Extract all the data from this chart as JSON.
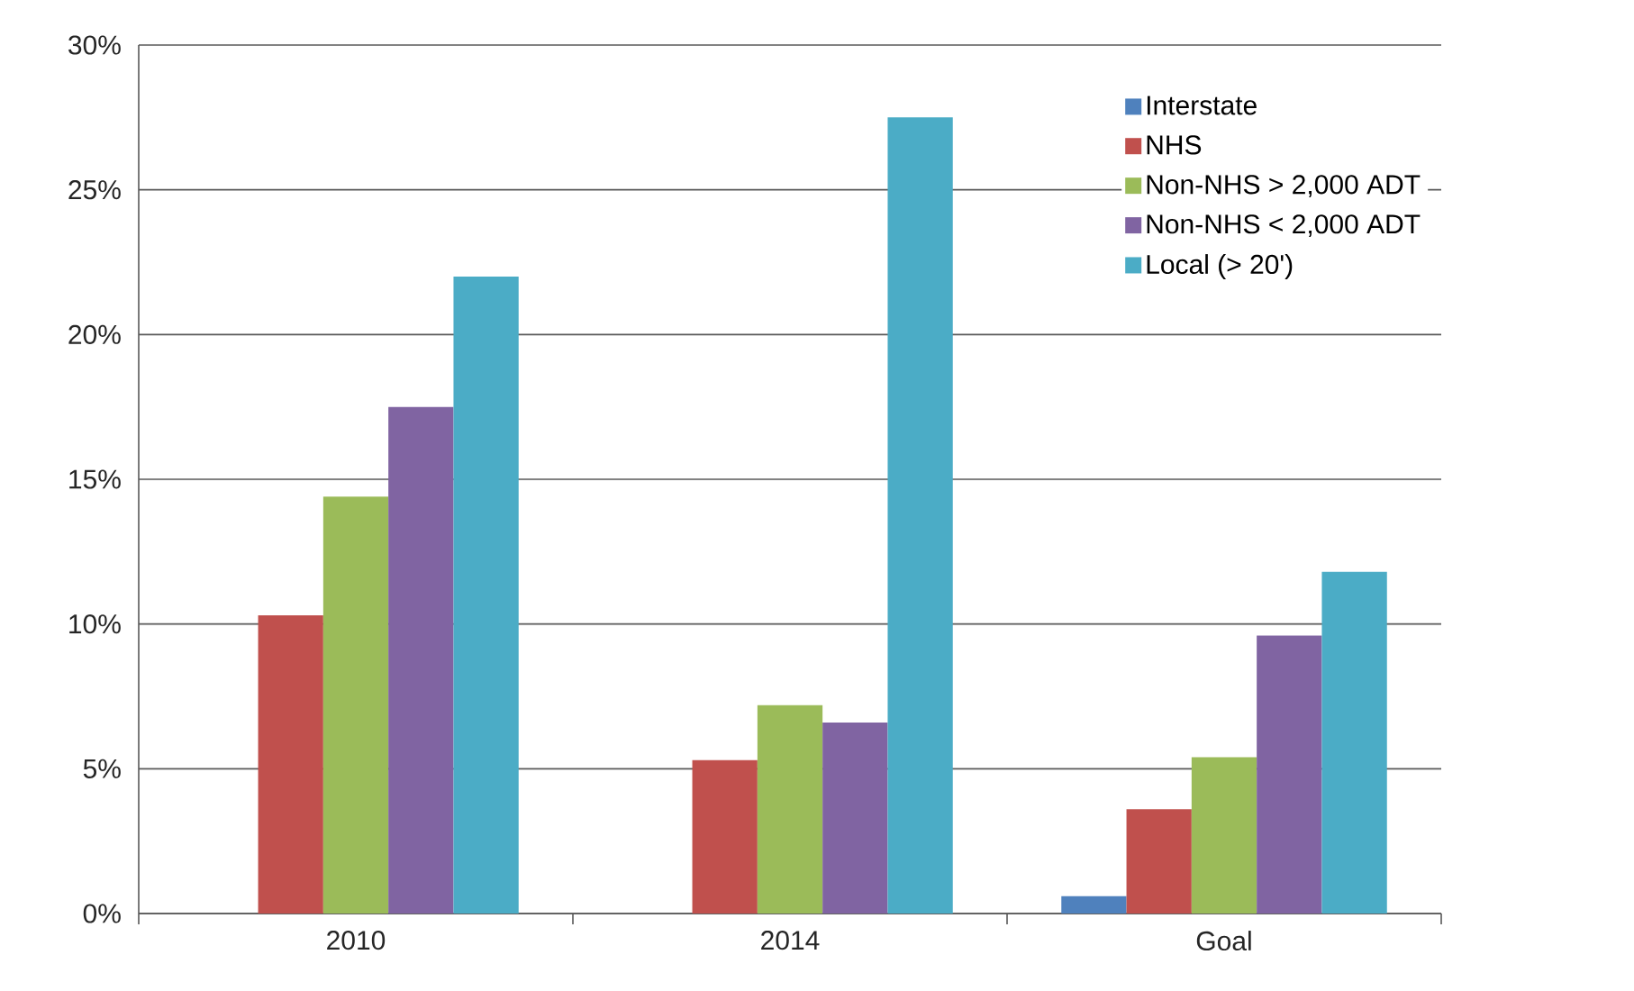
{
  "chart_data": {
    "type": "bar",
    "categories": [
      "2010",
      "2014",
      "Goal"
    ],
    "series": [
      {
        "name": "Interstate",
        "color": "#4f81bd",
        "values": [
          0,
          0,
          0.6
        ]
      },
      {
        "name": "NHS",
        "color": "#c0504d",
        "values": [
          10.3,
          5.3,
          3.6
        ]
      },
      {
        "name": "Non-NHS > 2,000 ADT",
        "color": "#9bbb59",
        "values": [
          14.4,
          7.2,
          5.4
        ]
      },
      {
        "name": "Non-NHS < 2,000 ADT",
        "color": "#8064a2",
        "values": [
          17.5,
          6.6,
          9.6
        ]
      },
      {
        "name": "Local (> 20')",
        "color": "#4bacc6",
        "values": [
          22.0,
          27.5,
          11.8
        ]
      }
    ],
    "ylim": [
      0,
      30
    ],
    "yticks": [
      {
        "value": 0,
        "label": "0%"
      },
      {
        "value": 5,
        "label": "5%"
      },
      {
        "value": 10,
        "label": "10%"
      },
      {
        "value": 15,
        "label": "15%"
      },
      {
        "value": 20,
        "label": "20%"
      },
      {
        "value": 25,
        "label": "25%"
      },
      {
        "value": 30,
        "label": "30%"
      }
    ],
    "grid": "y",
    "legend": "top right"
  }
}
